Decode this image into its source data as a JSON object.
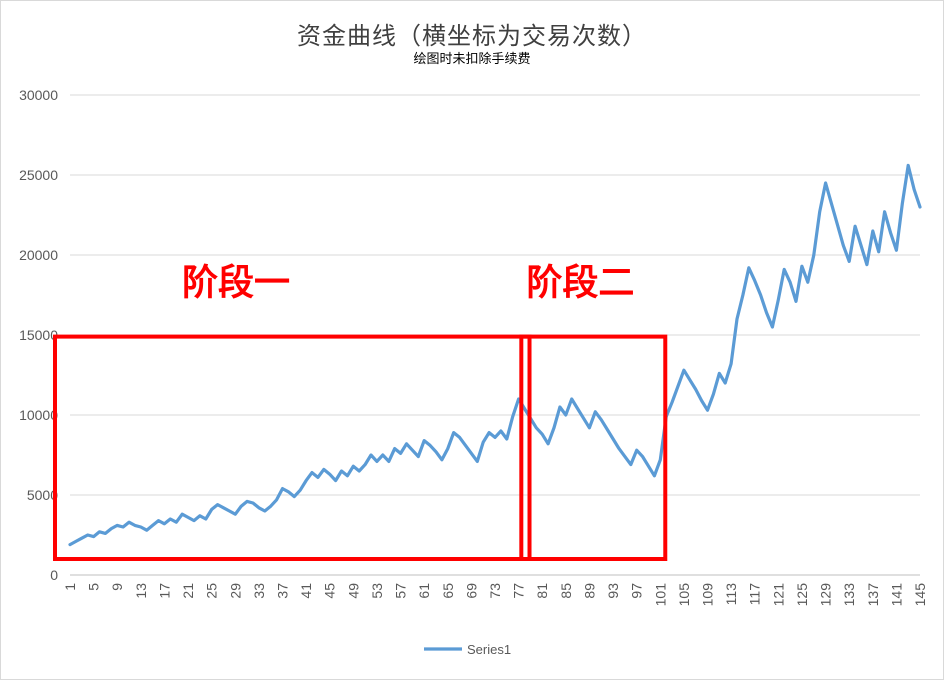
{
  "chart_data": {
    "type": "line",
    "title": "资金曲线（横坐标为交易次数）",
    "subtitle": "绘图时未扣除手续费",
    "xlabel": "",
    "ylabel": "",
    "ylim": [
      0,
      30000
    ],
    "yticks": [
      0,
      5000,
      10000,
      15000,
      20000,
      25000,
      30000
    ],
    "xtick_labels": [
      "1",
      "5",
      "9",
      "13",
      "17",
      "21",
      "25",
      "29",
      "33",
      "37",
      "41",
      "45",
      "49",
      "53",
      "57",
      "61",
      "65",
      "69",
      "73",
      "77",
      "81",
      "85",
      "89",
      "93",
      "97",
      "101",
      "105",
      "109",
      "113",
      "117",
      "121",
      "125",
      "129",
      "133",
      "137",
      "141",
      "145"
    ],
    "grid": "horizontal",
    "legend_position": "bottom",
    "line_color": "#5b9bd5",
    "annotation_color": "#ff0000",
    "series": [
      {
        "name": "Series1",
        "x": [
          1,
          2,
          3,
          4,
          5,
          6,
          7,
          8,
          9,
          10,
          11,
          12,
          13,
          14,
          15,
          16,
          17,
          18,
          19,
          20,
          21,
          22,
          23,
          24,
          25,
          26,
          27,
          28,
          29,
          30,
          31,
          32,
          33,
          34,
          35,
          36,
          37,
          38,
          39,
          40,
          41,
          42,
          43,
          44,
          45,
          46,
          47,
          48,
          49,
          50,
          51,
          52,
          53,
          54,
          55,
          56,
          57,
          58,
          59,
          60,
          61,
          62,
          63,
          64,
          65,
          66,
          67,
          68,
          69,
          70,
          71,
          72,
          73,
          74,
          75,
          76,
          77,
          78,
          79,
          80,
          81,
          82,
          83,
          84,
          85,
          86,
          87,
          88,
          89,
          90,
          91,
          92,
          93,
          94,
          95,
          96,
          97,
          98,
          99,
          100,
          101,
          102,
          103,
          104,
          105,
          106,
          107,
          108,
          109,
          110,
          111,
          112,
          113,
          114,
          115,
          116,
          117,
          118,
          119,
          120,
          121,
          122,
          123,
          124,
          125,
          126,
          127,
          128,
          129,
          130,
          131,
          132,
          133,
          134,
          135,
          136,
          137,
          138,
          139,
          140,
          141,
          142,
          143,
          144,
          145
        ],
        "values": [
          1900,
          2100,
          2300,
          2500,
          2400,
          2700,
          2600,
          2900,
          3100,
          3000,
          3300,
          3100,
          3000,
          2800,
          3100,
          3400,
          3200,
          3500,
          3300,
          3800,
          3600,
          3400,
          3700,
          3500,
          4100,
          4400,
          4200,
          4000,
          3800,
          4300,
          4600,
          4500,
          4200,
          4000,
          4300,
          4700,
          5400,
          5200,
          4900,
          5300,
          5900,
          6400,
          6100,
          6600,
          6300,
          5900,
          6500,
          6200,
          6800,
          6500,
          6900,
          7500,
          7100,
          7500,
          7100,
          7900,
          7600,
          8200,
          7800,
          7400,
          8400,
          8100,
          7700,
          7200,
          7900,
          8900,
          8600,
          8100,
          7600,
          7100,
          8300,
          8900,
          8600,
          9000,
          8500,
          9900,
          11000,
          10400,
          9800,
          9200,
          8800,
          8200,
          9200,
          10500,
          10000,
          11000,
          10400,
          9800,
          9200,
          10200,
          9700,
          9100,
          8500,
          7900,
          7400,
          6900,
          7800,
          7400,
          6800,
          6200,
          7200,
          9900,
          10800,
          11800,
          12800,
          12200,
          11600,
          10900,
          10300,
          11300,
          12600,
          12000,
          13200,
          16000,
          17500,
          19200,
          18400,
          17500,
          16400,
          15500,
          17200,
          19100,
          18300,
          17100,
          19300,
          18300,
          20000,
          22700,
          24500,
          23200,
          21900,
          20600,
          19600,
          21800,
          20600,
          19400,
          21500,
          20200,
          22700,
          21400,
          20300,
          23200,
          25600,
          24100,
          23000
        ]
      }
    ],
    "annotations": [
      {
        "label": "阶段一",
        "x_start": 1,
        "x_end": 78
      },
      {
        "label": "阶段二",
        "x_start": 80,
        "x_end": 101
      }
    ]
  }
}
